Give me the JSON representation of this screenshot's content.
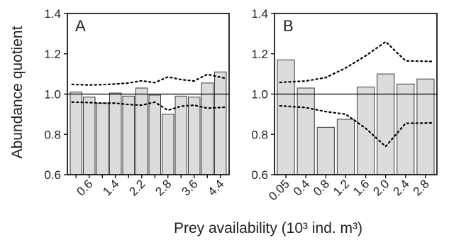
{
  "chart_data": {
    "type": "bar",
    "ylabel": "Abundance quotient",
    "xlabel": "Prey availability (10³ ind. m³)",
    "ylim": [
      0.6,
      1.4
    ],
    "yticks": [
      "0.6",
      "0.8",
      "1.0",
      "1.2",
      "1.4"
    ],
    "reference_line": 1.0,
    "panels": [
      {
        "label": "A",
        "categories": [
          "",
          "0.6",
          "",
          "1.4",
          "",
          "2.2",
          "",
          "2.8",
          "",
          "3.6",
          "",
          "4.4"
        ],
        "values": [
          1.01,
          0.985,
          0.955,
          1.005,
          0.99,
          1.03,
          0.995,
          0.9,
          0.99,
          0.985,
          1.055,
          1.11
        ],
        "upper_ci": [
          1.048,
          1.045,
          1.047,
          1.05,
          1.055,
          1.066,
          1.057,
          1.085,
          1.072,
          1.065,
          1.098,
          1.078
        ],
        "lower_ci": [
          0.96,
          0.958,
          0.955,
          0.955,
          0.948,
          0.945,
          0.96,
          0.92,
          0.94,
          0.945,
          0.93,
          0.935
        ]
      },
      {
        "label": "B",
        "categories": [
          "0.05",
          "0.4",
          "0.8",
          "1.2",
          "1.6",
          "2.0",
          "2.4",
          "2.8"
        ],
        "values": [
          1.17,
          1.03,
          0.835,
          0.875,
          1.035,
          1.1,
          1.05,
          1.075
        ],
        "upper_ci": [
          1.058,
          1.065,
          1.082,
          1.13,
          1.19,
          1.26,
          1.165,
          1.162
        ],
        "lower_ci": [
          0.942,
          0.933,
          0.913,
          0.9,
          0.83,
          0.74,
          0.855,
          0.857
        ]
      }
    ]
  }
}
